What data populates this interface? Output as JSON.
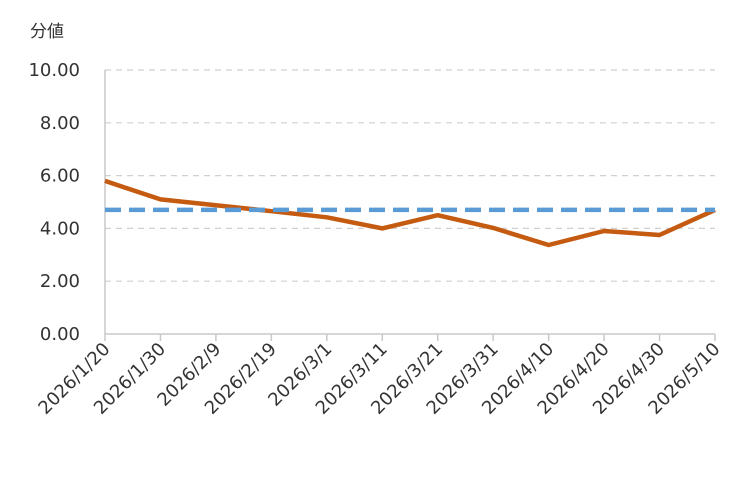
{
  "chart_data": {
    "type": "line",
    "ylabel": "分値",
    "ylim": [
      0,
      10
    ],
    "yticks": [
      "0.00",
      "2.00",
      "4.00",
      "6.00",
      "8.00",
      "10.00"
    ],
    "categories": [
      "2026/1/20",
      "2026/1/30",
      "2026/2/9",
      "2026/2/19",
      "2026/3/1",
      "2026/3/11",
      "2026/3/21",
      "2026/3/31",
      "2026/4/10",
      "2026/4/20",
      "2026/4/30",
      "2026/5/10"
    ],
    "series": [
      {
        "values": [
          5.8,
          5.1,
          4.88,
          4.65,
          4.42,
          4.0,
          4.5,
          4.02,
          3.37,
          3.9,
          3.75,
          4.7
        ],
        "color": "#c55a11",
        "style": "solid"
      },
      {
        "values": [
          4.7,
          4.7,
          4.7,
          4.7,
          4.7,
          4.7,
          4.7,
          4.7,
          4.7,
          4.7,
          4.7,
          4.7
        ],
        "color": "#5b9bd5",
        "style": "dashed"
      }
    ],
    "grid": true,
    "grid_color": "#d0d0d0",
    "axis_color": "#c8c8c8"
  }
}
